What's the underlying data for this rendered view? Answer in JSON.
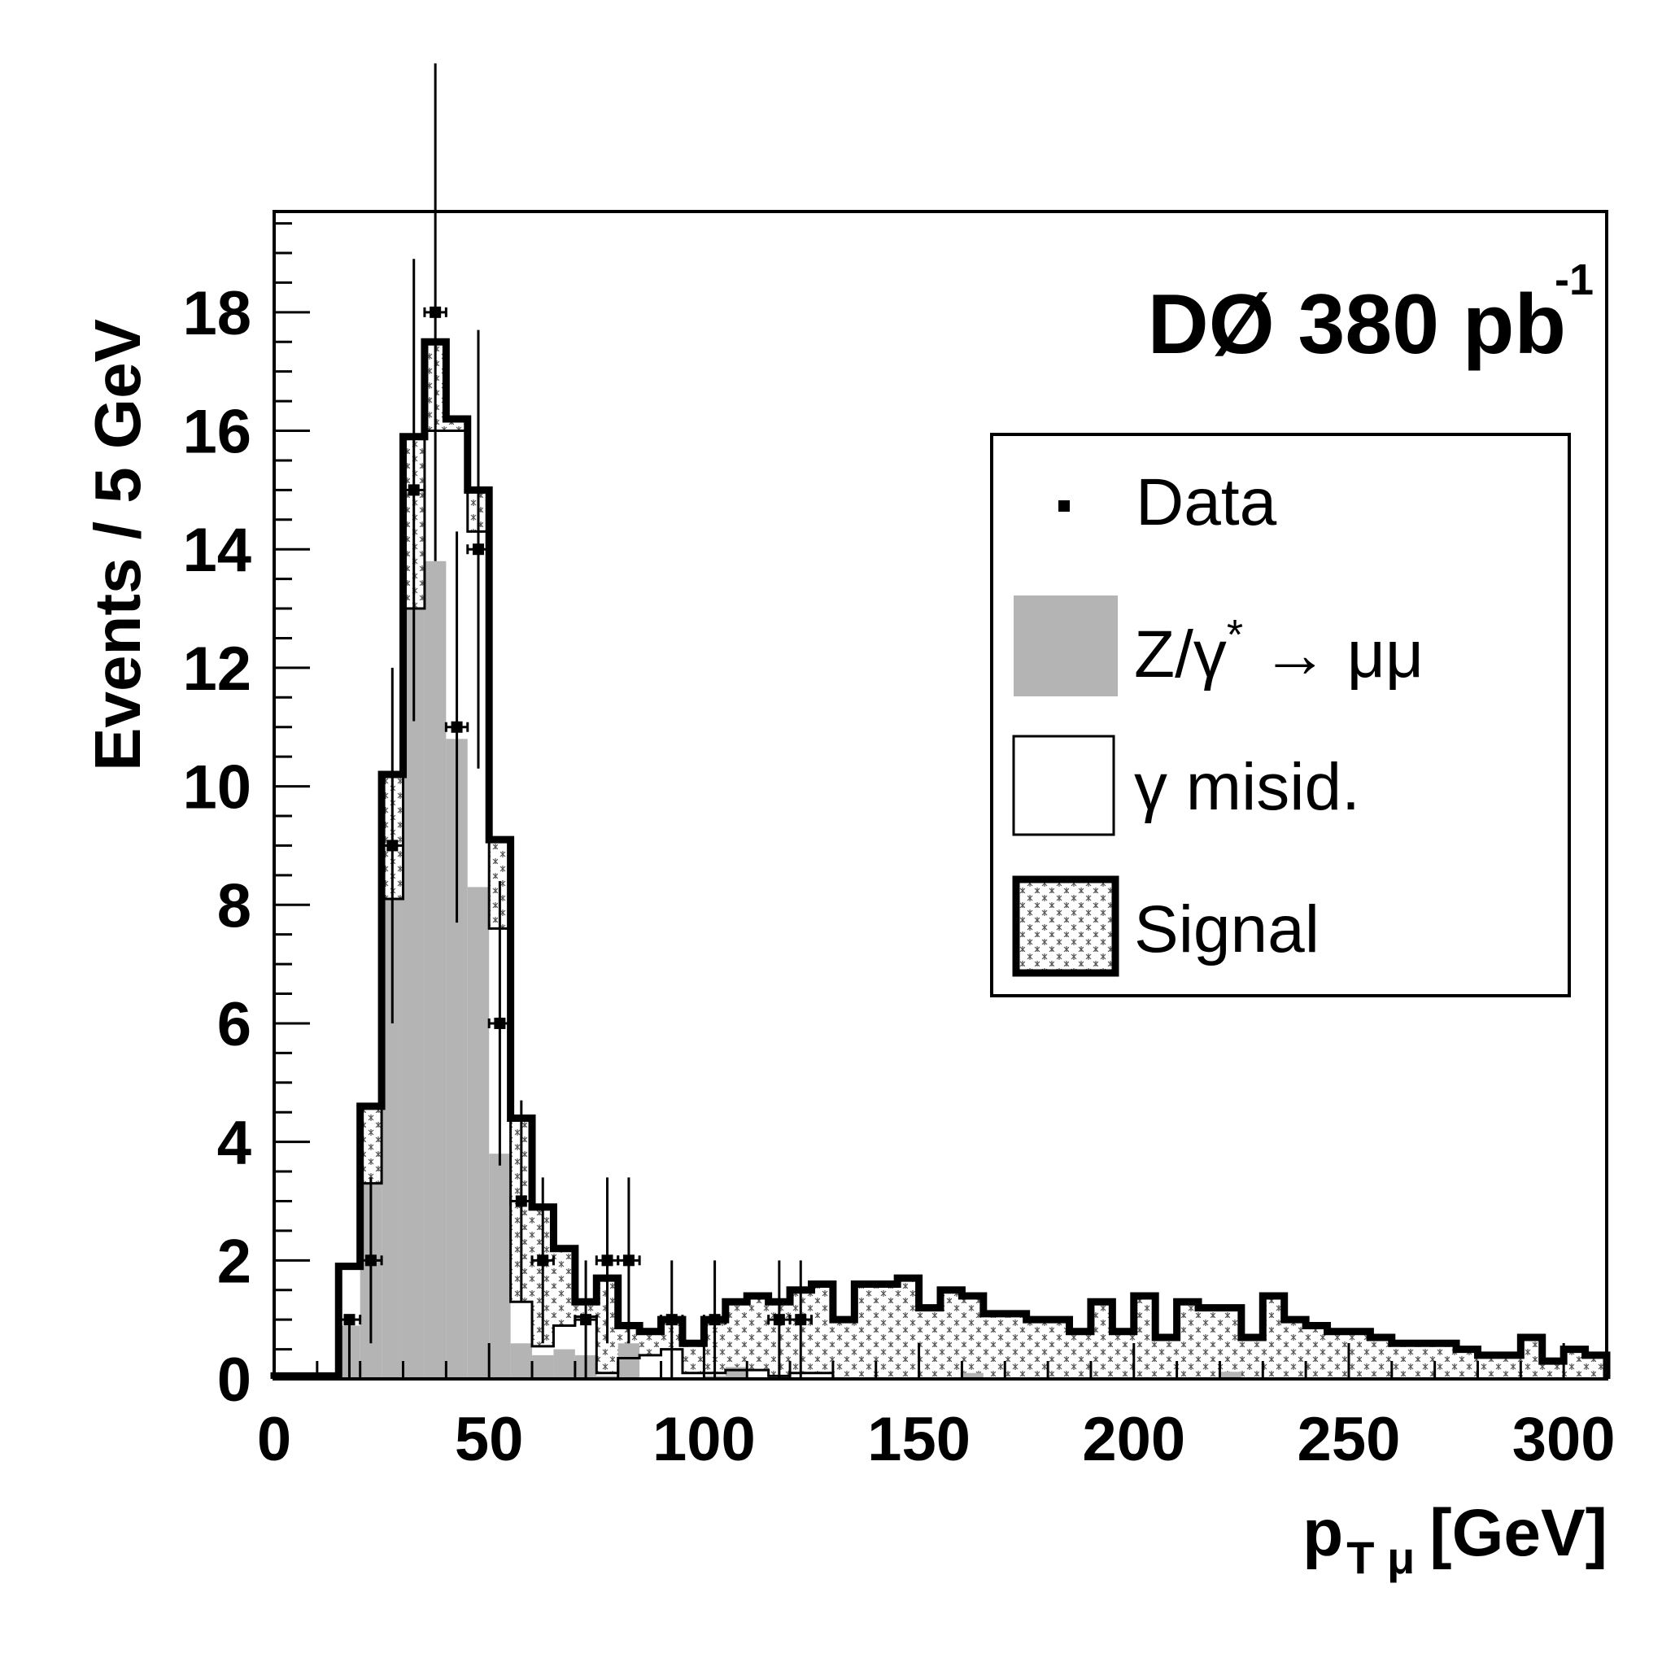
{
  "chart_data": {
    "type": "histogram",
    "annotation": {
      "main": "DØ 380 pb",
      "superscript": "-1"
    },
    "xlabel": {
      "main": "p",
      "sub": "T μ",
      "unit": "[GeV]"
    },
    "ylabel": "Events /  5 GeV",
    "xlim": [
      0,
      310
    ],
    "ylim": [
      0,
      19.7
    ],
    "bin_width": 5,
    "x_ticks": [
      0,
      50,
      100,
      150,
      200,
      250,
      300
    ],
    "y_ticks": [
      0,
      2,
      4,
      6,
      8,
      10,
      12,
      14,
      16,
      18
    ],
    "legend": {
      "position": "top-right",
      "entries": [
        {
          "key": "data",
          "label": "Data"
        },
        {
          "key": "zmumu",
          "label": "Z/γ",
          "sup": "*",
          "tail": " → μμ"
        },
        {
          "key": "gamma",
          "label": "γ misid."
        },
        {
          "key": "signal",
          "label": "Signal"
        }
      ]
    },
    "series": [
      {
        "name": "Z/γ* → μμ",
        "style": "filled-gray",
        "color": "#b4b4b4",
        "bin_edges": [
          15,
          20,
          25,
          30,
          35,
          40,
          45,
          50,
          55,
          60,
          65,
          70,
          75,
          80,
          85,
          90,
          95,
          100,
          105,
          110,
          115,
          120,
          125,
          130,
          135,
          140,
          145,
          150,
          155,
          160,
          165,
          170,
          175,
          180,
          185,
          190,
          195,
          200,
          205,
          210,
          215,
          220,
          225,
          230
        ],
        "values": [
          0.9,
          3.3,
          8.1,
          13.0,
          13.8,
          10.8,
          8.3,
          3.8,
          0.6,
          0.4,
          0.5,
          0.4,
          0.05,
          0.6,
          0.02,
          0.02,
          0.02,
          0.05,
          0.2,
          0.02,
          0.02,
          0.02,
          0.02,
          0.02,
          0.02,
          0.02,
          0.02,
          0.02,
          0.02,
          0.1,
          0.02,
          0.02,
          0.02,
          0.02,
          0.02,
          0.02,
          0.02,
          0.02,
          0.02,
          0.02,
          0.02,
          0.12,
          0.02
        ]
      },
      {
        "name": "γ misid.",
        "style": "thin-outline",
        "color": "#000000",
        "bin_edges": [
          0,
          15,
          20,
          25,
          30,
          35,
          40,
          45,
          50,
          55,
          60,
          65,
          70,
          75,
          80,
          85,
          90,
          95,
          100,
          105,
          110,
          115,
          120,
          125,
          130
        ],
        "values": [
          0.05,
          1.9,
          3.3,
          8.1,
          13.0,
          16.0,
          16.0,
          14.3,
          7.6,
          1.3,
          0.55,
          0.9,
          1.05,
          0.1,
          0.35,
          0.4,
          0.5,
          0.1,
          0.1,
          0.15,
          0.15,
          0.05,
          0.1,
          0.1
        ]
      },
      {
        "name": "Signal",
        "style": "thick-outline-hatched",
        "color": "#000000",
        "bin_edges": [
          0,
          15,
          20,
          25,
          30,
          35,
          40,
          45,
          50,
          55,
          60,
          65,
          70,
          75,
          80,
          85,
          90,
          95,
          100,
          105,
          110,
          115,
          120,
          125,
          130,
          135,
          140,
          145,
          150,
          155,
          160,
          165,
          170,
          175,
          180,
          185,
          190,
          195,
          200,
          205,
          210,
          215,
          220,
          225,
          230,
          235,
          240,
          245,
          250,
          255,
          260,
          265,
          270,
          275,
          280,
          285,
          290,
          295,
          300,
          305,
          310
        ],
        "values": [
          0.05,
          1.9,
          4.6,
          10.2,
          15.9,
          17.5,
          16.2,
          15.0,
          9.1,
          4.4,
          2.9,
          2.2,
          1.3,
          1.7,
          0.9,
          0.8,
          1.0,
          0.6,
          1.0,
          1.3,
          1.4,
          1.3,
          1.5,
          1.6,
          1.0,
          1.6,
          1.6,
          1.7,
          1.2,
          1.5,
          1.4,
          1.1,
          1.1,
          1.0,
          1.0,
          0.8,
          1.3,
          0.8,
          1.4,
          0.7,
          1.3,
          1.2,
          1.2,
          0.7,
          1.4,
          1.0,
          0.9,
          0.8,
          0.8,
          0.7,
          0.6,
          0.6,
          0.6,
          0.5,
          0.4,
          0.4,
          0.7,
          0.3,
          0.5,
          0.4
        ]
      },
      {
        "name": "Data",
        "style": "points-with-errors",
        "color": "#000000",
        "points": [
          {
            "x": 17.5,
            "y": 1,
            "err_lo": 1,
            "err_hi": 0
          },
          {
            "x": 22.5,
            "y": 2,
            "err_lo": 1.4,
            "err_hi": 1.4
          },
          {
            "x": 27.5,
            "y": 9,
            "err_lo": 3,
            "err_hi": 3
          },
          {
            "x": 32.5,
            "y": 15,
            "err_lo": 3.9,
            "err_hi": 3.9
          },
          {
            "x": 37.5,
            "y": 18,
            "err_lo": 4.2,
            "err_hi": 4.2
          },
          {
            "x": 42.5,
            "y": 11,
            "err_lo": 3.3,
            "err_hi": 3.3
          },
          {
            "x": 47.5,
            "y": 14,
            "err_lo": 3.7,
            "err_hi": 3.7
          },
          {
            "x": 52.5,
            "y": 6,
            "err_lo": 2.4,
            "err_hi": 2.4
          },
          {
            "x": 57.5,
            "y": 3,
            "err_lo": 1.7,
            "err_hi": 1.7
          },
          {
            "x": 62.5,
            "y": 2,
            "err_lo": 1.4,
            "err_hi": 1.4
          },
          {
            "x": 72.5,
            "y": 1,
            "err_lo": 1,
            "err_hi": 1
          },
          {
            "x": 77.5,
            "y": 2,
            "err_lo": 1.4,
            "err_hi": 1.4
          },
          {
            "x": 82.5,
            "y": 2,
            "err_lo": 1.4,
            "err_hi": 1.4
          },
          {
            "x": 92.5,
            "y": 1,
            "err_lo": 1,
            "err_hi": 1
          },
          {
            "x": 102.5,
            "y": 1,
            "err_lo": 1,
            "err_hi": 1
          },
          {
            "x": 117.5,
            "y": 1,
            "err_lo": 1,
            "err_hi": 1
          },
          {
            "x": 122.5,
            "y": 1,
            "err_lo": 1,
            "err_hi": 1
          }
        ]
      }
    ]
  }
}
